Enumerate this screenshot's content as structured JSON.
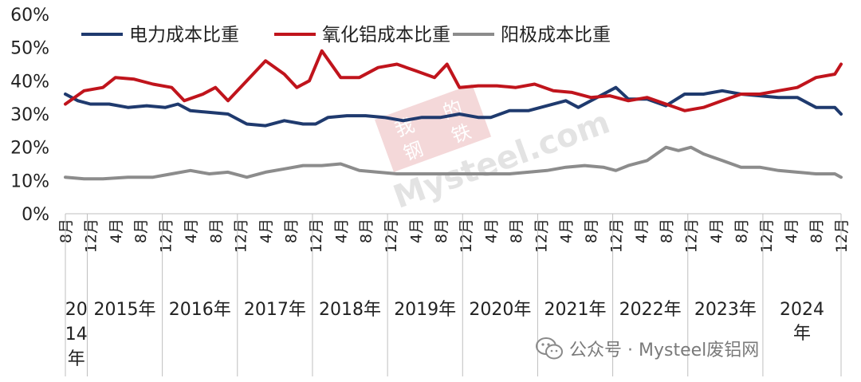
{
  "chart_data": {
    "type": "line",
    "title": "",
    "xlabel": "",
    "ylabel": "",
    "ylim": [
      0,
      0.6
    ],
    "y_tick_labels": [
      "0%",
      "10%",
      "20%",
      "30%",
      "40%",
      "50%",
      "60%"
    ],
    "y_ticks": [
      0,
      0.1,
      0.2,
      0.3,
      0.4,
      0.5,
      0.6
    ],
    "grid": false,
    "legend_position": "top",
    "month_tick_labels": [
      "8月",
      "12月",
      "4月",
      "8月",
      "12月",
      "4月",
      "8月",
      "12月",
      "4月",
      "8月",
      "12月",
      "4月",
      "8月",
      "12月",
      "4月",
      "8月",
      "12月",
      "4月",
      "8月",
      "12月",
      "4月",
      "8月",
      "12月",
      "4月",
      "8月",
      "12月",
      "4月",
      "8月",
      "12月",
      "4月",
      "8月",
      "12月",
      "4月",
      "8月"
    ],
    "year_labels": [
      "2014年",
      "2015年",
      "2016年",
      "2017年",
      "2018年",
      "2019年",
      "2020年",
      "2021年",
      "2022年",
      "2023年",
      "2024年"
    ],
    "x_range": [
      "2014-08",
      "2024-12"
    ],
    "series": [
      {
        "name": "电力成本比重",
        "color": "#1f3a6e",
        "points": [
          [
            "2014-08",
            0.36
          ],
          [
            "2014-10",
            0.34
          ],
          [
            "2014-12",
            0.33
          ],
          [
            "2015-03",
            0.33
          ],
          [
            "2015-06",
            0.32
          ],
          [
            "2015-09",
            0.325
          ],
          [
            "2015-12",
            0.32
          ],
          [
            "2016-02",
            0.33
          ],
          [
            "2016-04",
            0.31
          ],
          [
            "2016-07",
            0.305
          ],
          [
            "2016-10",
            0.3
          ],
          [
            "2017-01",
            0.27
          ],
          [
            "2017-04",
            0.265
          ],
          [
            "2017-07",
            0.28
          ],
          [
            "2017-10",
            0.27
          ],
          [
            "2017-12",
            0.27
          ],
          [
            "2018-02",
            0.29
          ],
          [
            "2018-05",
            0.295
          ],
          [
            "2018-08",
            0.295
          ],
          [
            "2018-11",
            0.29
          ],
          [
            "2019-02",
            0.28
          ],
          [
            "2019-05",
            0.29
          ],
          [
            "2019-08",
            0.29
          ],
          [
            "2019-11",
            0.3
          ],
          [
            "2020-02",
            0.29
          ],
          [
            "2020-04",
            0.29
          ],
          [
            "2020-07",
            0.31
          ],
          [
            "2020-10",
            0.31
          ],
          [
            "2021-01",
            0.325
          ],
          [
            "2021-04",
            0.34
          ],
          [
            "2021-06",
            0.32
          ],
          [
            "2021-09",
            0.35
          ],
          [
            "2021-12",
            0.38
          ],
          [
            "2022-02",
            0.345
          ],
          [
            "2022-05",
            0.345
          ],
          [
            "2022-08",
            0.325
          ],
          [
            "2022-11",
            0.36
          ],
          [
            "2023-02",
            0.36
          ],
          [
            "2023-05",
            0.37
          ],
          [
            "2023-08",
            0.36
          ],
          [
            "2023-11",
            0.355
          ],
          [
            "2024-02",
            0.35
          ],
          [
            "2024-05",
            0.35
          ],
          [
            "2024-08",
            0.32
          ],
          [
            "2024-11",
            0.32
          ],
          [
            "2024-12",
            0.3
          ]
        ]
      },
      {
        "name": "氧化铝成本比重",
        "color": "#c0141c",
        "points": [
          [
            "2014-08",
            0.33
          ],
          [
            "2014-11",
            0.37
          ],
          [
            "2015-02",
            0.38
          ],
          [
            "2015-04",
            0.41
          ],
          [
            "2015-07",
            0.405
          ],
          [
            "2015-10",
            0.39
          ],
          [
            "2016-01",
            0.38
          ],
          [
            "2016-03",
            0.34
          ],
          [
            "2016-06",
            0.36
          ],
          [
            "2016-08",
            0.38
          ],
          [
            "2016-10",
            0.34
          ],
          [
            "2017-01",
            0.4
          ],
          [
            "2017-04",
            0.46
          ],
          [
            "2017-07",
            0.42
          ],
          [
            "2017-09",
            0.38
          ],
          [
            "2017-11",
            0.4
          ],
          [
            "2018-01",
            0.49
          ],
          [
            "2018-04",
            0.41
          ],
          [
            "2018-07",
            0.41
          ],
          [
            "2018-10",
            0.44
          ],
          [
            "2019-01",
            0.45
          ],
          [
            "2019-04",
            0.43
          ],
          [
            "2019-07",
            0.41
          ],
          [
            "2019-09",
            0.45
          ],
          [
            "2019-11",
            0.38
          ],
          [
            "2020-02",
            0.385
          ],
          [
            "2020-05",
            0.385
          ],
          [
            "2020-08",
            0.38
          ],
          [
            "2020-11",
            0.39
          ],
          [
            "2021-02",
            0.37
          ],
          [
            "2021-05",
            0.365
          ],
          [
            "2021-08",
            0.35
          ],
          [
            "2021-11",
            0.355
          ],
          [
            "2022-02",
            0.34
          ],
          [
            "2022-05",
            0.35
          ],
          [
            "2022-08",
            0.33
          ],
          [
            "2022-11",
            0.31
          ],
          [
            "2023-02",
            0.32
          ],
          [
            "2023-05",
            0.34
          ],
          [
            "2023-08",
            0.36
          ],
          [
            "2023-11",
            0.36
          ],
          [
            "2024-02",
            0.37
          ],
          [
            "2024-05",
            0.38
          ],
          [
            "2024-08",
            0.41
          ],
          [
            "2024-11",
            0.42
          ],
          [
            "2024-12",
            0.45
          ]
        ]
      },
      {
        "name": "阳极成本比重",
        "color": "#8c8c8c",
        "points": [
          [
            "2014-08",
            0.11
          ],
          [
            "2014-11",
            0.105
          ],
          [
            "2015-02",
            0.105
          ],
          [
            "2015-06",
            0.11
          ],
          [
            "2015-10",
            0.11
          ],
          [
            "2016-01",
            0.12
          ],
          [
            "2016-04",
            0.13
          ],
          [
            "2016-07",
            0.12
          ],
          [
            "2016-10",
            0.125
          ],
          [
            "2017-01",
            0.11
          ],
          [
            "2017-04",
            0.125
          ],
          [
            "2017-07",
            0.135
          ],
          [
            "2017-10",
            0.145
          ],
          [
            "2018-01",
            0.145
          ],
          [
            "2018-04",
            0.15
          ],
          [
            "2018-07",
            0.13
          ],
          [
            "2018-10",
            0.125
          ],
          [
            "2019-01",
            0.12
          ],
          [
            "2019-04",
            0.12
          ],
          [
            "2019-07",
            0.12
          ],
          [
            "2019-10",
            0.12
          ],
          [
            "2020-01",
            0.12
          ],
          [
            "2020-04",
            0.12
          ],
          [
            "2020-07",
            0.12
          ],
          [
            "2020-10",
            0.125
          ],
          [
            "2021-01",
            0.13
          ],
          [
            "2021-04",
            0.14
          ],
          [
            "2021-07",
            0.145
          ],
          [
            "2021-10",
            0.14
          ],
          [
            "2021-12",
            0.13
          ],
          [
            "2022-02",
            0.145
          ],
          [
            "2022-05",
            0.16
          ],
          [
            "2022-08",
            0.2
          ],
          [
            "2022-10",
            0.19
          ],
          [
            "2022-12",
            0.2
          ],
          [
            "2023-02",
            0.18
          ],
          [
            "2023-05",
            0.16
          ],
          [
            "2023-08",
            0.14
          ],
          [
            "2023-11",
            0.14
          ],
          [
            "2024-02",
            0.13
          ],
          [
            "2024-05",
            0.125
          ],
          [
            "2024-08",
            0.12
          ],
          [
            "2024-11",
            0.12
          ],
          [
            "2024-12",
            0.11
          ]
        ]
      }
    ]
  },
  "watermark": {
    "brand_text": "Mysteel.com",
    "logo_chars": [
      "我",
      "的",
      "钢",
      "铁"
    ]
  },
  "footer": {
    "icon": "wechat-icon",
    "text": "公众号 · Mysteel废铝网"
  }
}
